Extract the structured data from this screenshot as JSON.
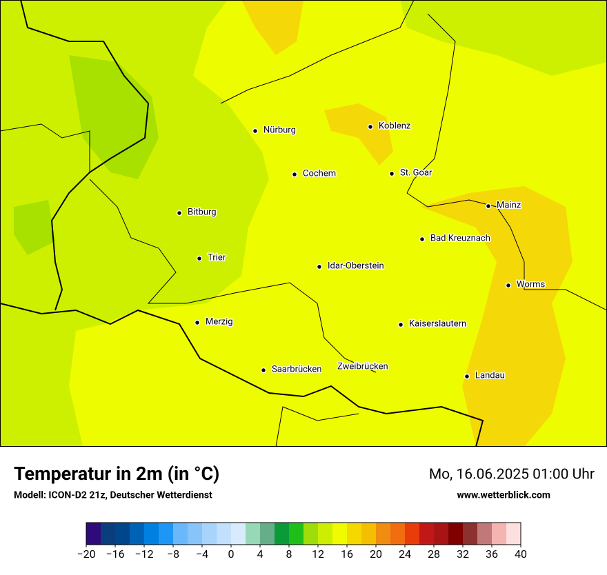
{
  "map": {
    "cities": [
      {
        "name": "Nürburg"
      },
      {
        "name": "Koblenz"
      },
      {
        "name": "Cochem"
      },
      {
        "name": "St. Goar"
      },
      {
        "name": "Mainz"
      },
      {
        "name": "Bitburg"
      },
      {
        "name": "Bad Kreuznach"
      },
      {
        "name": "Trier"
      },
      {
        "name": "Idar-Oberstein"
      },
      {
        "name": "Worms"
      },
      {
        "name": "Merzig"
      },
      {
        "name": "Kaiserslautern"
      },
      {
        "name": "Saarbrücken"
      },
      {
        "name": "Zweibrücken"
      },
      {
        "name": "Landau"
      }
    ]
  },
  "footer": {
    "title": "Temperatur in 2m (in °C)",
    "subtitle": "Modell: ICON-D2 21z, Deutscher Wetterdienst",
    "date": "Mo, 16.06.2025 01:00 Uhr",
    "website": "www.wetterblick.com"
  },
  "colorbar": {
    "range": [
      -20,
      40
    ],
    "colors": [
      "#2e0a7a",
      "#0a3d7e",
      "#00468a",
      "#0062b5",
      "#0080e0",
      "#1e96f5",
      "#6ab8f9",
      "#86c4fa",
      "#a8d4fb",
      "#c2e0fc",
      "#d8ebfc",
      "#96d8b8",
      "#66ae8a",
      "#0a9a3a",
      "#20be18",
      "#9edc0a",
      "#cdee00",
      "#f0fa00",
      "#f4d800",
      "#f4bf00",
      "#f08c10",
      "#f06e10",
      "#e83c0a",
      "#c01818",
      "#a81414",
      "#800000",
      "#8c3030",
      "#c07878",
      "#f4b4b0",
      "#fce0e0"
    ],
    "ticks": [
      {
        "value": -20,
        "label": "−20"
      },
      {
        "value": -16,
        "label": "−16"
      },
      {
        "value": -12,
        "label": "−12"
      },
      {
        "value": -8,
        "label": "−8"
      },
      {
        "value": -4,
        "label": "−4"
      },
      0,
      4,
      8,
      12,
      16,
      20,
      24,
      28,
      32,
      36,
      40
    ]
  }
}
